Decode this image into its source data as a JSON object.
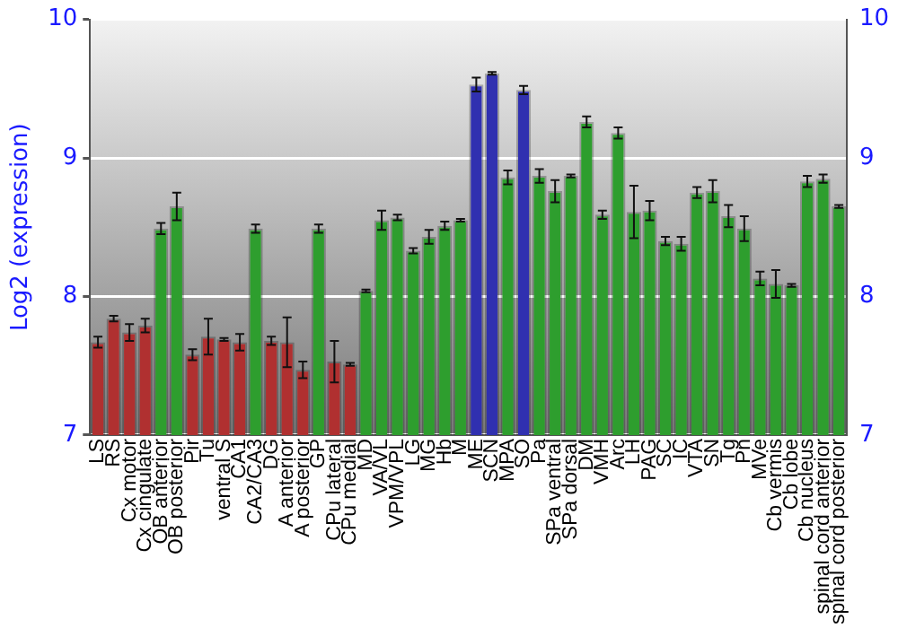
{
  "chart_data": {
    "type": "bar",
    "ylabel": "Log2 (expression)",
    "categories": [
      "LS",
      "RS",
      "Cx motor",
      "Cx cingulate",
      "OB anterior",
      "OB posterior",
      "Pir",
      "Tu",
      "ventral S",
      "CA1",
      "CA2/CA3",
      "DG",
      "A anterior",
      "A posterior",
      "GP",
      "CPu lateral",
      "CPu medial",
      "MD",
      "VA/VL",
      "VPM/VPL",
      "LG",
      "MG",
      "Hb",
      "M",
      "ME",
      "SCN",
      "MPA",
      "SO",
      "Pa",
      "SPa ventral",
      "SPa dorsal",
      "DM",
      "VMH",
      "Arc",
      "LH",
      "PAG",
      "SC",
      "IC",
      "VTA",
      "SN",
      "Tg",
      "Pn",
      "MVe",
      "Cb vermis",
      "Cb lobe",
      "Cb nucleus",
      "spinal cord anterior",
      "spinal cord posterior"
    ],
    "values": [
      7.67,
      7.84,
      7.74,
      7.79,
      8.49,
      8.65,
      7.58,
      7.71,
      7.69,
      7.67,
      8.49,
      7.68,
      7.67,
      7.47,
      8.49,
      7.53,
      7.51,
      8.04,
      8.55,
      8.57,
      8.33,
      8.43,
      8.51,
      8.55,
      9.53,
      9.61,
      8.86,
      9.49,
      8.87,
      8.76,
      8.87,
      9.26,
      8.59,
      9.18,
      8.61,
      8.62,
      8.4,
      8.38,
      8.75,
      8.76,
      8.58,
      8.49,
      8.13,
      8.09,
      8.08,
      8.83,
      8.85,
      8.65
    ],
    "errors": [
      0.04,
      0.02,
      0.06,
      0.05,
      0.04,
      0.1,
      0.04,
      0.13,
      0.01,
      0.06,
      0.03,
      0.03,
      0.18,
      0.06,
      0.03,
      0.15,
      0.01,
      0.01,
      0.07,
      0.02,
      0.02,
      0.05,
      0.03,
      0.01,
      0.05,
      0.01,
      0.05,
      0.03,
      0.05,
      0.08,
      0.01,
      0.04,
      0.03,
      0.04,
      0.19,
      0.07,
      0.03,
      0.05,
      0.04,
      0.08,
      0.08,
      0.09,
      0.05,
      0.1,
      0.01,
      0.04,
      0.03,
      0.01
    ],
    "colors": [
      "#b03030",
      "#b03030",
      "#b03030",
      "#b03030",
      "#2e9e2e",
      "#2e9e2e",
      "#b03030",
      "#b03030",
      "#b03030",
      "#b03030",
      "#2e9e2e",
      "#b03030",
      "#b03030",
      "#b03030",
      "#2e9e2e",
      "#b03030",
      "#b03030",
      "#2e9e2e",
      "#2e9e2e",
      "#2e9e2e",
      "#2e9e2e",
      "#2e9e2e",
      "#2e9e2e",
      "#2e9e2e",
      "#3030b0",
      "#3030b0",
      "#2e9e2e",
      "#3030b0",
      "#2e9e2e",
      "#2e9e2e",
      "#2e9e2e",
      "#2e9e2e",
      "#2e9e2e",
      "#2e9e2e",
      "#2e9e2e",
      "#2e9e2e",
      "#2e9e2e",
      "#2e9e2e",
      "#2e9e2e",
      "#2e9e2e",
      "#2e9e2e",
      "#2e9e2e",
      "#2e9e2e",
      "#2e9e2e",
      "#2e9e2e",
      "#2e9e2e",
      "#2e9e2e",
      "#2e9e2e"
    ],
    "ylim": [
      7,
      10
    ],
    "yticks": [
      7,
      8,
      9,
      10
    ],
    "y2lim": [
      7,
      10
    ],
    "y2ticks": [
      7,
      8,
      9,
      10
    ],
    "grid": "y",
    "legend": false
  }
}
